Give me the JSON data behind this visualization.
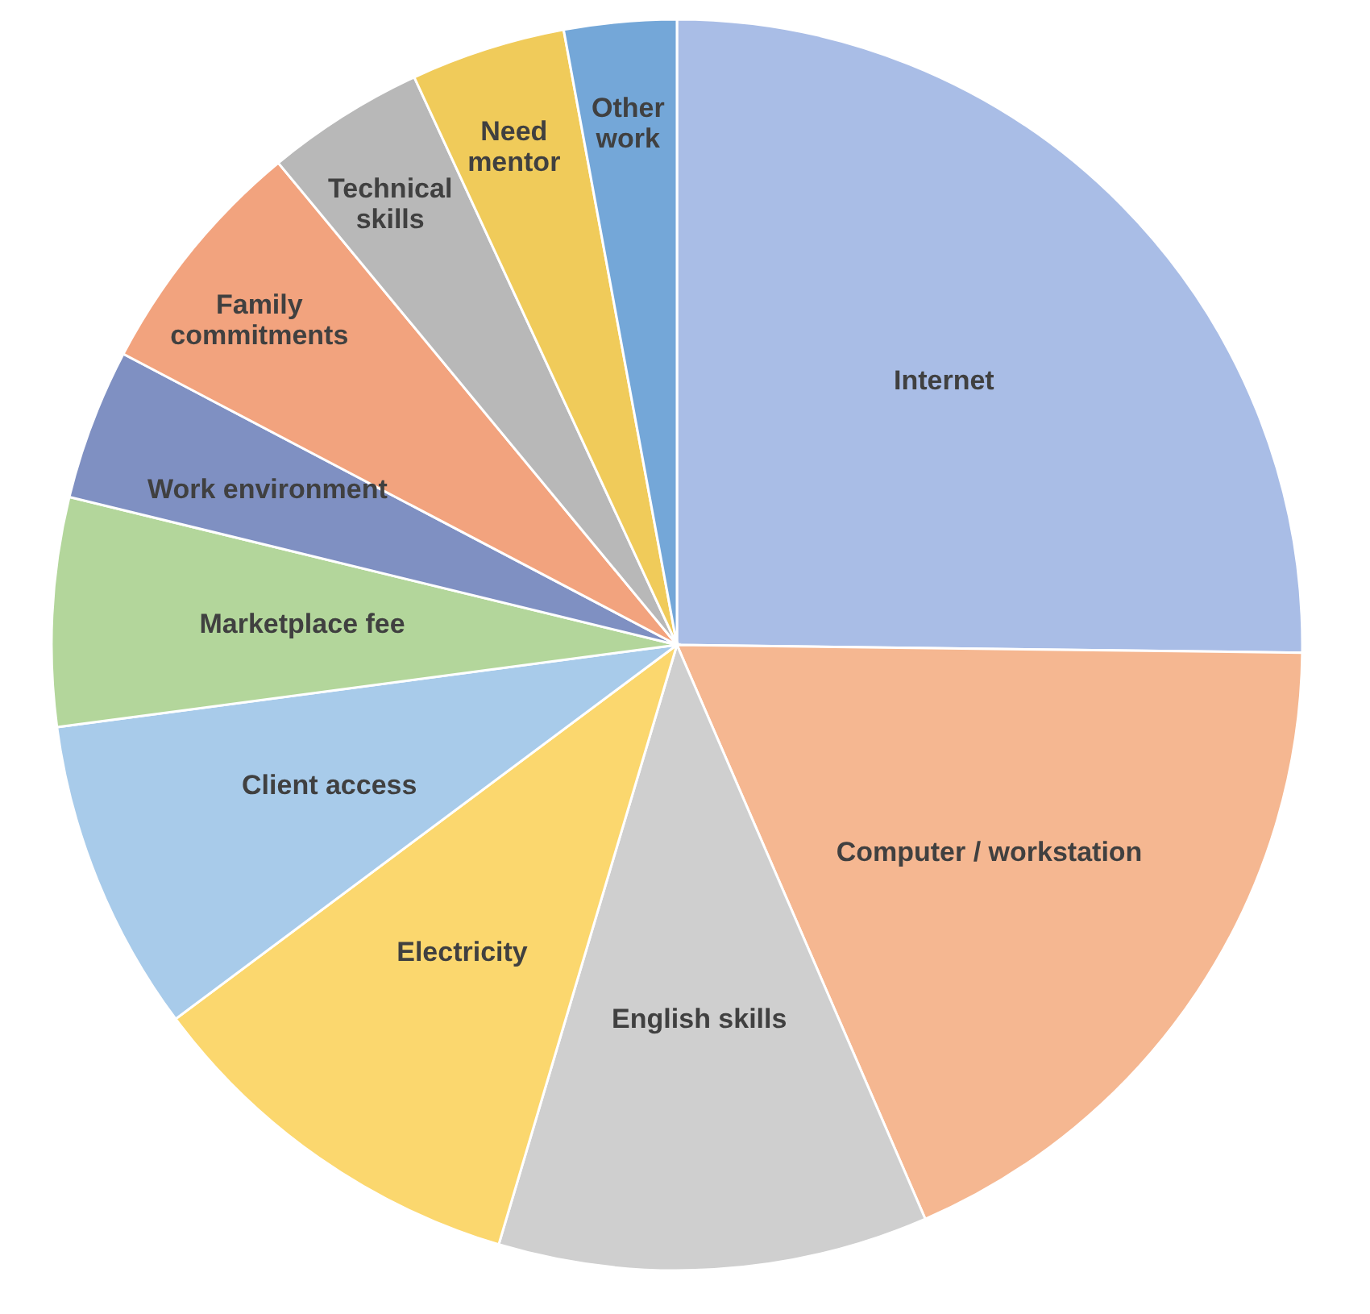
{
  "chart_data": {
    "type": "pie",
    "categories": [
      "Internet",
      "Computer / workstation",
      "English skills",
      "Electricity",
      "Client access",
      "Marketplace fee",
      "Work environment",
      "Family commitments",
      "Technical skills",
      "Need mentor",
      "Other work"
    ],
    "values": [
      25.2,
      18.3,
      11.1,
      10.2,
      8.1,
      5.9,
      3.9,
      6.3,
      4.1,
      4.0,
      2.9
    ],
    "colors": [
      "#a9bde6",
      "#f5b791",
      "#cfcfcf",
      "#fbd76e",
      "#a8cbea",
      "#b3d69b",
      "#7f90c2",
      "#f2a37e",
      "#b8b8b8",
      "#f0cb5a",
      "#74a7d8"
    ],
    "legend": false
  }
}
